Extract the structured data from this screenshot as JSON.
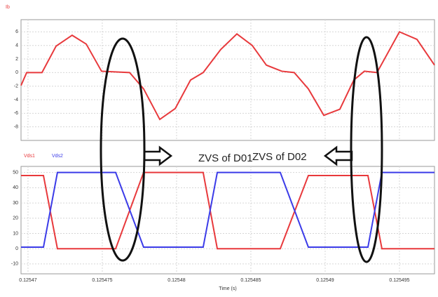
{
  "chart_data": [
    {
      "type": "line",
      "x": [
        0.12546953,
        0.12546991,
        0.12547094,
        0.12547189,
        0.12547297,
        0.12547392,
        0.12547495,
        0.12547684,
        0.12547778,
        0.12547887,
        0.12547991,
        0.12548094,
        0.12548179,
        0.12548297,
        0.12548406,
        0.12548509,
        0.12548604,
        0.12548708,
        0.12548792,
        0.12548887,
        0.12548991,
        0.12549099,
        0.12549193,
        0.12549264,
        0.12549349,
        0.125495,
        0.12549618,
        0.12549736
      ],
      "series": [
        {
          "name": "Ib",
          "color": "#e8393c",
          "values": [
            -1.9,
            0,
            0,
            3.9,
            5.5,
            4.2,
            0.2,
            0,
            -2.4,
            -6.9,
            -5.3,
            -1.1,
            0,
            3.4,
            5.7,
            4.0,
            1.1,
            0.2,
            0,
            -2.4,
            -6.3,
            -5.4,
            -1.1,
            0.2,
            0,
            6.0,
            4.9,
            1.1
          ]
        }
      ],
      "xlim": [
        0.12546953,
        0.12549736
      ],
      "xticks": [
        0.12547,
        0.125475,
        0.12548,
        0.125485,
        0.12549,
        0.125495
      ],
      "ylim": [
        -10,
        7.8
      ],
      "yticks": [
        6,
        4,
        2,
        0,
        -2,
        -4,
        -6,
        -8
      ],
      "grid": true
    },
    {
      "type": "line",
      "x": [
        0.12546953,
        0.12547104,
        0.12547198,
        0.1254759,
        0.12547778,
        0.12548179,
        0.12548274,
        0.12548698,
        0.12548887,
        0.12549288,
        0.12549382,
        0.12549736
      ],
      "series": [
        {
          "name": "Vds1",
          "color": "#e8393c",
          "values": [
            48,
            48,
            0,
            0,
            50,
            50,
            0,
            0,
            48,
            48,
            0,
            0
          ]
        },
        {
          "name": "Vds2",
          "color": "#3b3be8",
          "values": [
            1,
            1,
            50,
            50,
            1,
            1,
            50,
            50,
            1,
            1,
            50,
            50
          ]
        }
      ],
      "xlim": [
        0.12546953,
        0.12549736
      ],
      "xticks": [
        0.12547,
        0.125475,
        0.12548,
        0.125485,
        0.12549,
        0.125495
      ],
      "ylim": [
        -16.5,
        54
      ],
      "yticks": [
        50,
        40,
        30,
        20,
        10,
        0,
        -10
      ],
      "grid": true,
      "xlabel": "Time (s)",
      "annotations": [
        "ZVS of D01",
        "ZVS of D02"
      ]
    }
  ]
}
